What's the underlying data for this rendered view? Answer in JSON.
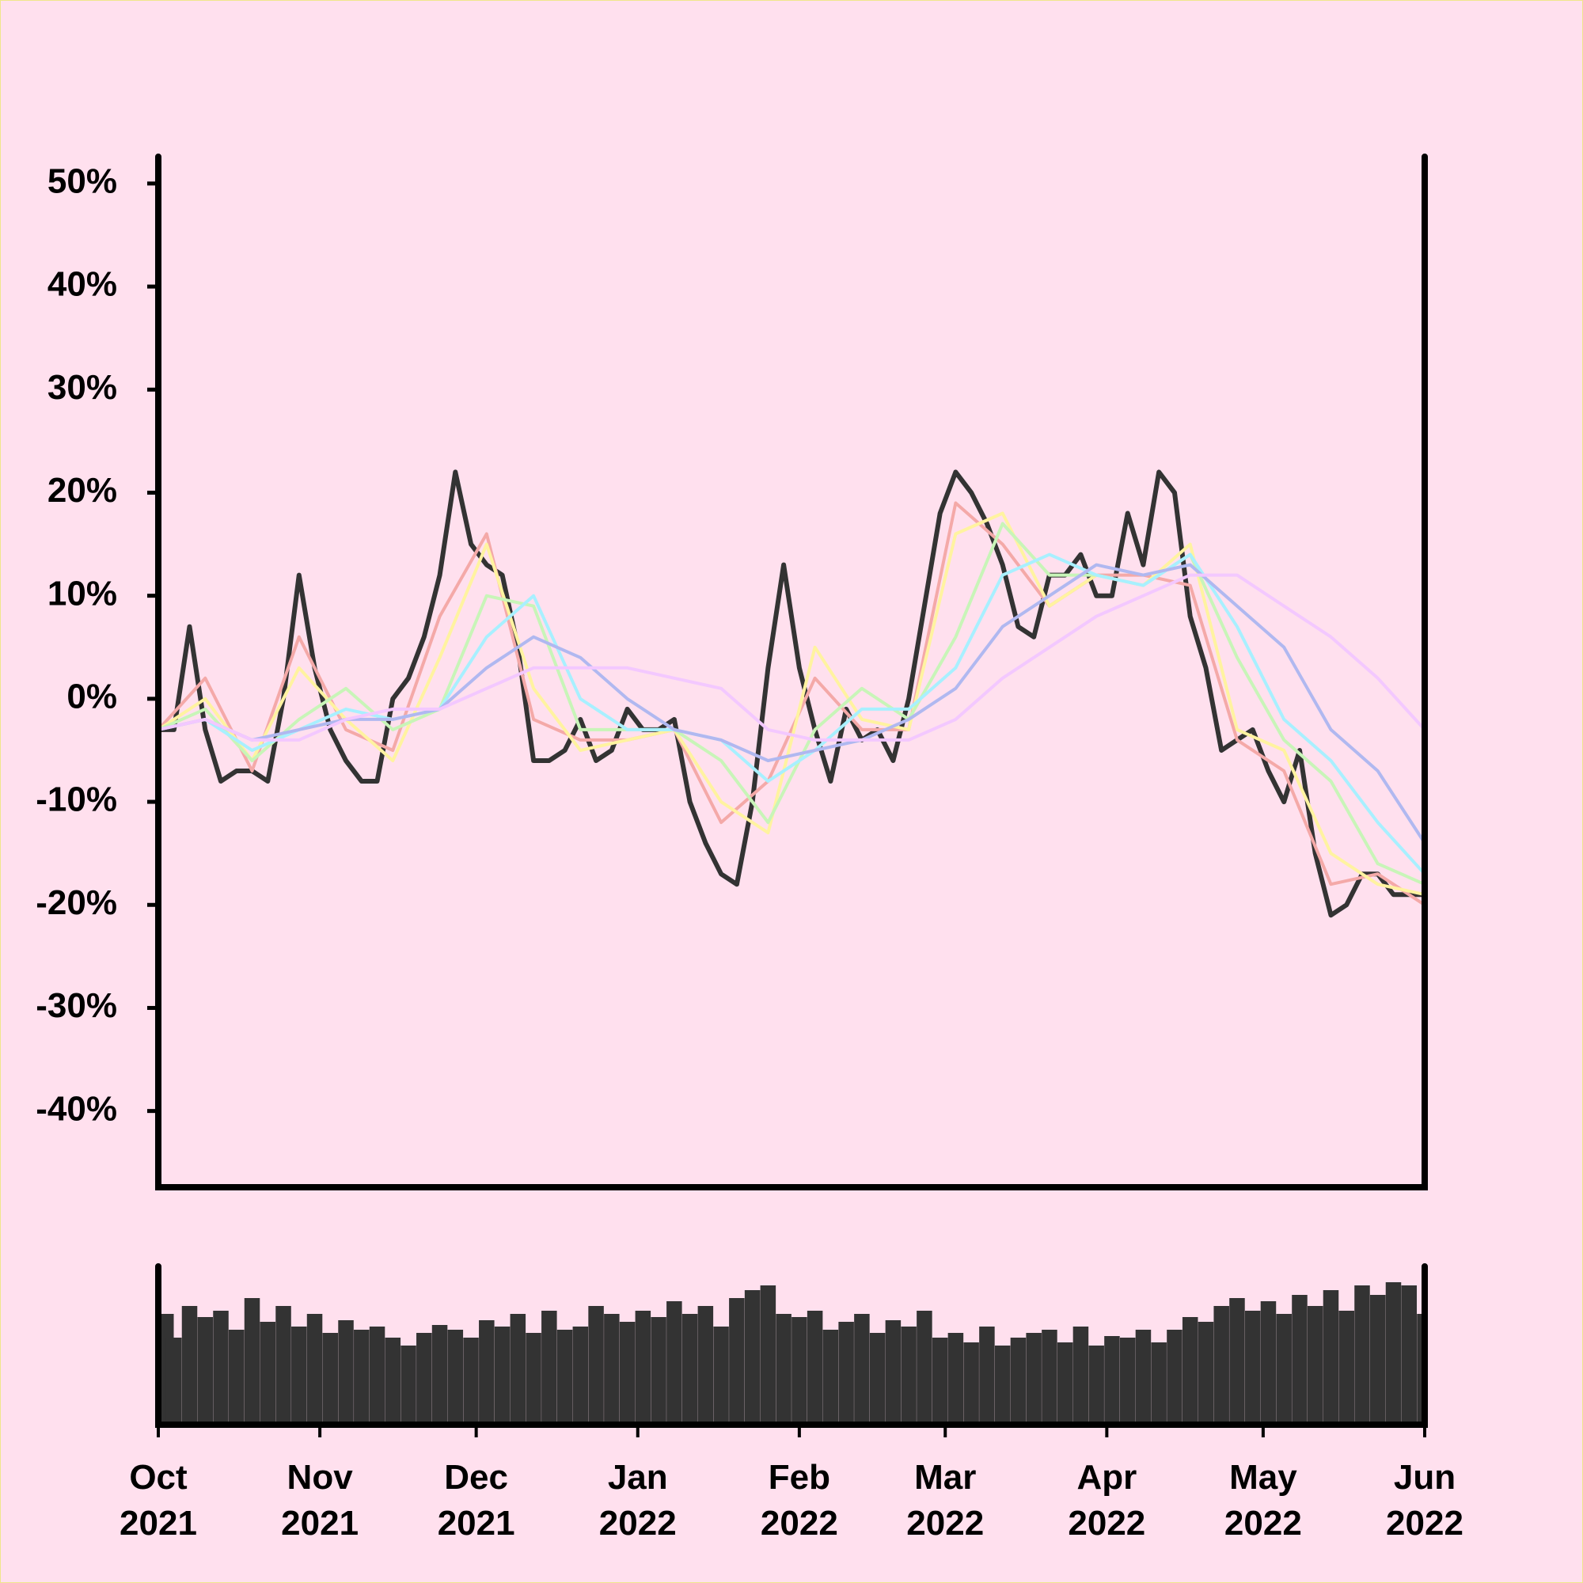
{
  "chart_data": [
    {
      "type": "line",
      "xlim": [
        0,
        243
      ],
      "ylim": [
        -47.4,
        52.6
      ],
      "yticks": [
        {
          "value": -40,
          "label": "-40%"
        },
        {
          "value": -30,
          "label": "-30%"
        },
        {
          "value": -20,
          "label": "-20%"
        },
        {
          "value": -10,
          "label": "-10%"
        },
        {
          "value": 0,
          "label": "0%"
        },
        {
          "value": 10,
          "label": "10%"
        },
        {
          "value": 20,
          "label": "20%"
        },
        {
          "value": 30,
          "label": "30%"
        },
        {
          "value": 40,
          "label": "40%"
        },
        {
          "value": 50,
          "label": "50%"
        }
      ],
      "series": [
        {
          "color": "#f4a9a8",
          "x": [
            0,
            9,
            18,
            27,
            36,
            45,
            54,
            63,
            72,
            81,
            90,
            99,
            108,
            117,
            126,
            135,
            144,
            153,
            162,
            171,
            180,
            189,
            198,
            207,
            216,
            225,
            234,
            243
          ],
          "values": [
            -3,
            2,
            -7,
            6,
            -3,
            -5,
            8,
            16,
            -2,
            -4,
            -4,
            -3,
            -12,
            -8,
            2,
            -3,
            -3,
            19,
            15,
            9,
            12,
            12,
            11,
            -4,
            -7,
            -18,
            -17,
            -20
          ]
        },
        {
          "color": "#fff3a0",
          "x": [
            0,
            9,
            18,
            27,
            36,
            45,
            54,
            63,
            72,
            81,
            90,
            99,
            108,
            117,
            126,
            135,
            144,
            153,
            162,
            171,
            180,
            189,
            198,
            207,
            216,
            225,
            234,
            243
          ],
          "values": [
            -3,
            0,
            -6,
            3,
            -2,
            -6,
            4,
            15,
            1,
            -5,
            -4,
            -3,
            -10,
            -13,
            5,
            -2,
            -3,
            16,
            18,
            9,
            12,
            11,
            15,
            -3,
            -5,
            -15,
            -18,
            -19
          ]
        },
        {
          "color": "#c8f5b8",
          "x": [
            0,
            9,
            18,
            27,
            36,
            45,
            54,
            63,
            72,
            81,
            90,
            99,
            108,
            117,
            126,
            135,
            144,
            153,
            162,
            171,
            180,
            189,
            198,
            207,
            216,
            225,
            234,
            243
          ],
          "values": [
            -3,
            -1,
            -6,
            -2,
            1,
            -3,
            -1,
            10,
            9,
            -3,
            -3,
            -3,
            -6,
            -12,
            -3,
            1,
            -2,
            6,
            17,
            12,
            12,
            11,
            14,
            4,
            -4,
            -8,
            -16,
            -18
          ]
        },
        {
          "color": "#a8f0ff",
          "x": [
            0,
            9,
            18,
            27,
            36,
            45,
            54,
            63,
            72,
            81,
            90,
            99,
            108,
            117,
            126,
            135,
            144,
            153,
            162,
            171,
            180,
            189,
            198,
            207,
            216,
            225,
            234,
            243
          ],
          "values": [
            -3,
            -2,
            -5,
            -3,
            -1,
            -2,
            -1,
            6,
            10,
            0,
            -3,
            -3,
            -4,
            -8,
            -5,
            -1,
            -1,
            3,
            12,
            14,
            12,
            11,
            14,
            7,
            -2,
            -6,
            -12,
            -17
          ]
        },
        {
          "color": "#b0b8f0",
          "x": [
            0,
            9,
            18,
            27,
            36,
            45,
            54,
            63,
            72,
            81,
            90,
            99,
            108,
            117,
            126,
            135,
            144,
            153,
            162,
            171,
            180,
            189,
            198,
            207,
            216,
            225,
            234,
            243
          ],
          "values": [
            -3,
            -2,
            -4,
            -3,
            -2,
            -2,
            -1,
            3,
            6,
            4,
            0,
            -3,
            -4,
            -6,
            -5,
            -4,
            -2,
            1,
            7,
            10,
            13,
            12,
            13,
            9,
            5,
            -3,
            -7,
            -14
          ]
        },
        {
          "color": "#f3c8ff",
          "x": [
            0,
            9,
            18,
            27,
            36,
            45,
            54,
            63,
            72,
            81,
            90,
            99,
            108,
            117,
            126,
            135,
            144,
            153,
            162,
            171,
            180,
            189,
            198,
            207,
            216,
            225,
            234,
            243
          ],
          "values": [
            -3,
            -2,
            -4,
            -4,
            -2,
            -1,
            -1,
            1,
            3,
            3,
            3,
            2,
            1,
            -3,
            -4,
            -4,
            -4,
            -2,
            2,
            5,
            8,
            10,
            12,
            12,
            9,
            6,
            2,
            -3
          ]
        },
        {
          "color": "#333333",
          "x": [
            0,
            3,
            6,
            9,
            12,
            15,
            18,
            21,
            24,
            27,
            30,
            33,
            36,
            39,
            42,
            45,
            48,
            51,
            54,
            57,
            60,
            63,
            66,
            69,
            72,
            75,
            78,
            81,
            84,
            87,
            90,
            93,
            96,
            99,
            102,
            105,
            108,
            111,
            114,
            117,
            120,
            123,
            126,
            129,
            132,
            135,
            138,
            141,
            144,
            147,
            150,
            153,
            156,
            159,
            162,
            165,
            168,
            171,
            174,
            177,
            180,
            183,
            186,
            189,
            192,
            195,
            198,
            201,
            204,
            207,
            210,
            213,
            216,
            219,
            222,
            225,
            228,
            231,
            234,
            237,
            240,
            243
          ],
          "values": [
            -3,
            -3,
            7,
            -3,
            -8,
            -7,
            -7,
            -8,
            0,
            12,
            3,
            -3,
            -6,
            -8,
            -8,
            0,
            2,
            6,
            12,
            22,
            15,
            13,
            12,
            5,
            -6,
            -6,
            -5,
            -2,
            -6,
            -5,
            -1,
            -3,
            -3,
            -2,
            -10,
            -14,
            -17,
            -18,
            -10,
            3,
            13,
            3,
            -3,
            -8,
            -1,
            -4,
            -3,
            -6,
            0,
            9,
            18,
            22,
            20,
            17,
            13,
            7,
            6,
            12,
            12,
            14,
            10,
            10,
            18,
            13,
            22,
            20,
            8,
            3,
            -5,
            -4,
            -3,
            -7,
            -10,
            -5,
            -15,
            -21,
            -20,
            -17,
            -17,
            -19,
            -19,
            -19
          ]
        }
      ]
    },
    {
      "type": "bar",
      "color": "#333333",
      "xlim": [
        0,
        243
      ],
      "ylim": [
        0,
        100
      ],
      "xticks": [
        {
          "value": 0,
          "label": "Oct\n2021"
        },
        {
          "value": 31,
          "label": "Nov\n2021"
        },
        {
          "value": 61,
          "label": "Dec\n2021"
        },
        {
          "value": 92,
          "label": "Jan\n2022"
        },
        {
          "value": 123,
          "label": "Feb\n2022"
        },
        {
          "value": 151,
          "label": "Mar\n2022"
        },
        {
          "value": 182,
          "label": "Apr\n2022"
        },
        {
          "value": 212,
          "label": "May\n2022"
        },
        {
          "value": 243,
          "label": "Jun\n2022"
        }
      ],
      "x": [
        0,
        3,
        6,
        9,
        12,
        15,
        18,
        21,
        24,
        27,
        30,
        33,
        36,
        39,
        42,
        45,
        48,
        51,
        54,
        57,
        60,
        63,
        66,
        69,
        72,
        75,
        78,
        81,
        84,
        87,
        90,
        93,
        96,
        99,
        102,
        105,
        108,
        111,
        114,
        117,
        120,
        123,
        126,
        129,
        132,
        135,
        138,
        141,
        144,
        147,
        150,
        153,
        156,
        159,
        162,
        165,
        168,
        171,
        174,
        177,
        180,
        183,
        186,
        189,
        192,
        195,
        198,
        201,
        204,
        207,
        210,
        213,
        216,
        219,
        222,
        225,
        228,
        231,
        234,
        237,
        240,
        243
      ],
      "values": [
        70,
        55,
        75,
        68,
        72,
        60,
        80,
        65,
        75,
        62,
        70,
        58,
        66,
        60,
        62,
        55,
        50,
        58,
        63,
        60,
        55,
        66,
        62,
        70,
        58,
        72,
        60,
        62,
        75,
        70,
        65,
        72,
        68,
        78,
        70,
        75,
        62,
        80,
        85,
        88,
        70,
        68,
        72,
        60,
        65,
        70,
        58,
        66,
        62,
        72,
        55,
        58,
        52,
        62,
        50,
        55,
        58,
        60,
        52,
        62,
        50,
        56,
        55,
        60,
        52,
        60,
        68,
        65,
        75,
        80,
        72,
        78,
        70,
        82,
        75,
        85,
        72,
        88,
        82,
        90,
        88,
        70
      ]
    }
  ]
}
